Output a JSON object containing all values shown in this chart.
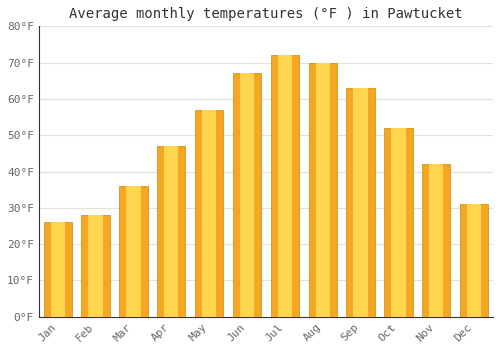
{
  "title": "Average monthly temperatures (°F ) in Pawtucket",
  "months": [
    "Jan",
    "Feb",
    "Mar",
    "Apr",
    "May",
    "Jun",
    "Jul",
    "Aug",
    "Sep",
    "Oct",
    "Nov",
    "Dec"
  ],
  "values": [
    26,
    28,
    36,
    47,
    57,
    67,
    72,
    70,
    63,
    52,
    42,
    31
  ],
  "bar_color_outer": "#F5A623",
  "bar_color_inner": "#FFD44E",
  "bar_edge_color": "#C8890A",
  "ylim": [
    0,
    80
  ],
  "yticks": [
    0,
    10,
    20,
    30,
    40,
    50,
    60,
    70,
    80
  ],
  "ytick_labels": [
    "0°F",
    "10°F",
    "20°F",
    "30°F",
    "40°F",
    "50°F",
    "60°F",
    "70°F",
    "80°F"
  ],
  "bg_color": "#FFFFFF",
  "grid_color": "#E0E0E0",
  "title_fontsize": 10,
  "tick_fontsize": 8,
  "font_family": "monospace",
  "tick_color": "#666666",
  "title_color": "#333333",
  "spine_color": "#333333",
  "bar_width": 0.75
}
